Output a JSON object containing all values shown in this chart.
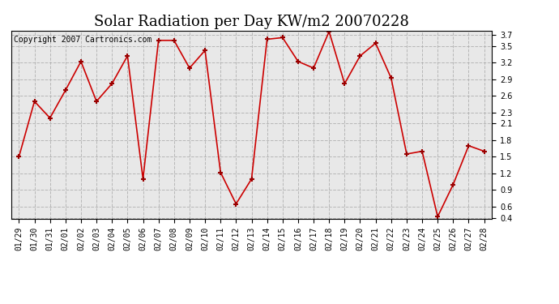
{
  "title": "Solar Radiation per Day KW/m2 20070228",
  "copyright_text": "Copyright 2007 Cartronics.com",
  "labels": [
    "01/29",
    "01/30",
    "01/31",
    "02/01",
    "02/02",
    "02/03",
    "02/04",
    "02/05",
    "02/06",
    "02/07",
    "02/08",
    "02/09",
    "02/10",
    "02/11",
    "02/12",
    "02/13",
    "02/14",
    "02/15",
    "02/16",
    "02/17",
    "02/18",
    "02/19",
    "02/20",
    "02/21",
    "02/22",
    "02/23",
    "02/24",
    "02/25",
    "02/26",
    "02/27",
    "02/28"
  ],
  "values": [
    1.5,
    2.5,
    2.2,
    2.7,
    3.22,
    2.5,
    2.82,
    3.32,
    1.1,
    3.6,
    3.6,
    3.1,
    3.42,
    1.22,
    0.65,
    1.1,
    3.62,
    3.65,
    3.22,
    3.1,
    3.76,
    2.82,
    3.32,
    3.55,
    2.92,
    1.55,
    1.6,
    0.42,
    1.0,
    1.7,
    1.6
  ],
  "line_color": "#cc0000",
  "marker": "+",
  "marker_size": 5,
  "marker_color": "#990000",
  "background_color": "#ffffff",
  "plot_bg_color": "#e8e8e8",
  "grid_color": "#aaaaaa",
  "ylim_min": 0.38,
  "ylim_max": 3.78,
  "yticks": [
    0.4,
    0.6,
    0.9,
    1.2,
    1.5,
    1.8,
    2.1,
    2.3,
    2.6,
    2.9,
    3.2,
    3.5,
    3.7
  ],
  "title_fontsize": 13,
  "tick_fontsize": 7,
  "copyright_fontsize": 7
}
